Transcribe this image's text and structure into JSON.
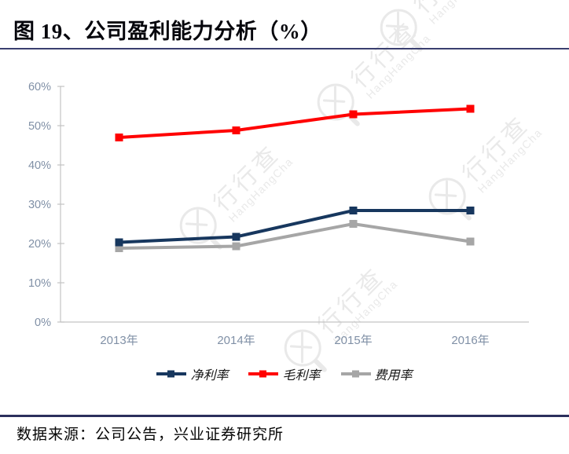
{
  "page": {
    "title": "图 19、公司盈利能力分析（%）",
    "source": "数据来源：公司公告，兴业证券研究所"
  },
  "watermark": {
    "cn": "行行查",
    "en": "HangHangCha"
  },
  "chart_data": {
    "type": "line",
    "title": "图 19、公司盈利能力分析（%）",
    "categories": [
      "2013年",
      "2014年",
      "2015年",
      "2016年"
    ],
    "series": [
      {
        "id": "net-margin",
        "name": "净利率",
        "color": "#17375E",
        "values": [
          20.3,
          21.7,
          28.4,
          28.4
        ]
      },
      {
        "id": "gross-margin",
        "name": "毛利率",
        "color": "#FF0000",
        "values": [
          47.0,
          48.8,
          52.9,
          54.3
        ]
      },
      {
        "id": "expense-ratio",
        "name": "费用率",
        "color": "#A6A6A6",
        "values": [
          18.8,
          19.3,
          25.0,
          20.5
        ]
      }
    ],
    "xlabel": "",
    "ylabel": "",
    "ylim": [
      0,
      60
    ],
    "ytick_step": 10,
    "ytick_labels": [
      "0%",
      "10%",
      "20%",
      "30%",
      "40%",
      "50%",
      "60%"
    ],
    "grid": false,
    "legend_position": "bottom",
    "marker": "square",
    "axis_color": "#c3c3c3",
    "tick_label_color": "#8090a6"
  }
}
